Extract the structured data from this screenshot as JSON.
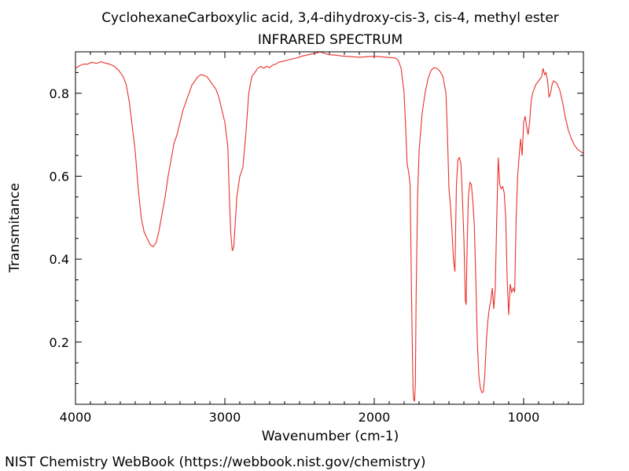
{
  "chart_data": {
    "type": "line",
    "title": "CyclohexaneCarboxylic acid, 3,4-dihydroxy-cis-3, cis-4, methyl ester",
    "subtitle": "INFRARED SPECTRUM",
    "xlabel": "Wavenumber (cm-1)",
    "ylabel": "Transmitance",
    "xlim": [
      4000,
      600
    ],
    "ylim": [
      0.05,
      0.9
    ],
    "x_reversed": true,
    "grid": false,
    "legend": "none",
    "x_ticks": [
      4000,
      3000,
      2000,
      1000
    ],
    "x_tick_labels": [
      "4000",
      "3000",
      "2000",
      "1000"
    ],
    "y_ticks": [
      0.2,
      0.4,
      0.6,
      0.8
    ],
    "y_tick_labels": [
      "0.2",
      "0.4",
      "0.6",
      "0.8"
    ],
    "line_color": "#e8312b",
    "series": [
      {
        "values_xy": [
          [
            4000,
            0.86
          ],
          [
            3980,
            0.865
          ],
          [
            3950,
            0.87
          ],
          [
            3920,
            0.87
          ],
          [
            3890,
            0.875
          ],
          [
            3860,
            0.872
          ],
          [
            3830,
            0.876
          ],
          [
            3800,
            0.873
          ],
          [
            3770,
            0.87
          ],
          [
            3740,
            0.865
          ],
          [
            3710,
            0.855
          ],
          [
            3680,
            0.84
          ],
          [
            3660,
            0.82
          ],
          [
            3640,
            0.78
          ],
          [
            3620,
            0.72
          ],
          [
            3600,
            0.66
          ],
          [
            3580,
            0.57
          ],
          [
            3560,
            0.5
          ],
          [
            3540,
            0.465
          ],
          [
            3520,
            0.45
          ],
          [
            3500,
            0.435
          ],
          [
            3480,
            0.43
          ],
          [
            3460,
            0.44
          ],
          [
            3440,
            0.47
          ],
          [
            3420,
            0.51
          ],
          [
            3400,
            0.55
          ],
          [
            3380,
            0.6
          ],
          [
            3360,
            0.64
          ],
          [
            3340,
            0.68
          ],
          [
            3320,
            0.7
          ],
          [
            3300,
            0.73
          ],
          [
            3280,
            0.76
          ],
          [
            3260,
            0.78
          ],
          [
            3240,
            0.8
          ],
          [
            3220,
            0.82
          ],
          [
            3200,
            0.83
          ],
          [
            3180,
            0.84
          ],
          [
            3160,
            0.845
          ],
          [
            3140,
            0.843
          ],
          [
            3120,
            0.84
          ],
          [
            3100,
            0.83
          ],
          [
            3080,
            0.82
          ],
          [
            3060,
            0.81
          ],
          [
            3040,
            0.79
          ],
          [
            3020,
            0.76
          ],
          [
            3000,
            0.73
          ],
          [
            2980,
            0.67
          ],
          [
            2970,
            0.55
          ],
          [
            2960,
            0.46
          ],
          [
            2950,
            0.42
          ],
          [
            2940,
            0.43
          ],
          [
            2930,
            0.49
          ],
          [
            2920,
            0.55
          ],
          [
            2900,
            0.6
          ],
          [
            2880,
            0.62
          ],
          [
            2860,
            0.7
          ],
          [
            2840,
            0.8
          ],
          [
            2820,
            0.84
          ],
          [
            2800,
            0.85
          ],
          [
            2780,
            0.86
          ],
          [
            2760,
            0.865
          ],
          [
            2740,
            0.86
          ],
          [
            2720,
            0.865
          ],
          [
            2700,
            0.862
          ],
          [
            2680,
            0.868
          ],
          [
            2660,
            0.87
          ],
          [
            2640,
            0.875
          ],
          [
            2600,
            0.878
          ],
          [
            2560,
            0.882
          ],
          [
            2520,
            0.885
          ],
          [
            2480,
            0.89
          ],
          [
            2440,
            0.893
          ],
          [
            2400,
            0.896
          ],
          [
            2360,
            0.9
          ],
          [
            2340,
            0.897
          ],
          [
            2300,
            0.893
          ],
          [
            2260,
            0.892
          ],
          [
            2220,
            0.89
          ],
          [
            2180,
            0.889
          ],
          [
            2140,
            0.888
          ],
          [
            2100,
            0.887
          ],
          [
            2060,
            0.888
          ],
          [
            2000,
            0.889
          ],
          [
            1960,
            0.888
          ],
          [
            1920,
            0.887
          ],
          [
            1880,
            0.886
          ],
          [
            1860,
            0.885
          ],
          [
            1840,
            0.88
          ],
          [
            1820,
            0.86
          ],
          [
            1800,
            0.8
          ],
          [
            1790,
            0.72
          ],
          [
            1780,
            0.63
          ],
          [
            1770,
            0.61
          ],
          [
            1760,
            0.58
          ],
          [
            1750,
            0.3
          ],
          [
            1740,
            0.08
          ],
          [
            1735,
            0.06
          ],
          [
            1730,
            0.058
          ],
          [
            1725,
            0.1
          ],
          [
            1720,
            0.3
          ],
          [
            1710,
            0.55
          ],
          [
            1700,
            0.66
          ],
          [
            1680,
            0.75
          ],
          [
            1660,
            0.8
          ],
          [
            1640,
            0.835
          ],
          [
            1620,
            0.855
          ],
          [
            1600,
            0.862
          ],
          [
            1580,
            0.86
          ],
          [
            1560,
            0.853
          ],
          [
            1540,
            0.84
          ],
          [
            1520,
            0.8
          ],
          [
            1510,
            0.7
          ],
          [
            1500,
            0.57
          ],
          [
            1490,
            0.53
          ],
          [
            1480,
            0.47
          ],
          [
            1470,
            0.4
          ],
          [
            1460,
            0.37
          ],
          [
            1450,
            0.58
          ],
          [
            1440,
            0.64
          ],
          [
            1430,
            0.645
          ],
          [
            1420,
            0.63
          ],
          [
            1410,
            0.55
          ],
          [
            1400,
            0.45
          ],
          [
            1390,
            0.3
          ],
          [
            1385,
            0.29
          ],
          [
            1380,
            0.4
          ],
          [
            1370,
            0.55
          ],
          [
            1360,
            0.585
          ],
          [
            1350,
            0.58
          ],
          [
            1340,
            0.54
          ],
          [
            1330,
            0.48
          ],
          [
            1320,
            0.35
          ],
          [
            1310,
            0.2
          ],
          [
            1300,
            0.12
          ],
          [
            1290,
            0.09
          ],
          [
            1280,
            0.078
          ],
          [
            1270,
            0.08
          ],
          [
            1260,
            0.12
          ],
          [
            1250,
            0.2
          ],
          [
            1240,
            0.25
          ],
          [
            1230,
            0.28
          ],
          [
            1220,
            0.3
          ],
          [
            1210,
            0.33
          ],
          [
            1200,
            0.28
          ],
          [
            1190,
            0.33
          ],
          [
            1180,
            0.5
          ],
          [
            1170,
            0.645
          ],
          [
            1160,
            0.58
          ],
          [
            1150,
            0.57
          ],
          [
            1140,
            0.575
          ],
          [
            1130,
            0.56
          ],
          [
            1120,
            0.5
          ],
          [
            1110,
            0.35
          ],
          [
            1100,
            0.265
          ],
          [
            1090,
            0.34
          ],
          [
            1080,
            0.32
          ],
          [
            1070,
            0.33
          ],
          [
            1060,
            0.32
          ],
          [
            1050,
            0.5
          ],
          [
            1040,
            0.6
          ],
          [
            1030,
            0.65
          ],
          [
            1020,
            0.69
          ],
          [
            1010,
            0.65
          ],
          [
            1000,
            0.73
          ],
          [
            990,
            0.745
          ],
          [
            980,
            0.72
          ],
          [
            970,
            0.7
          ],
          [
            960,
            0.73
          ],
          [
            950,
            0.78
          ],
          [
            940,
            0.8
          ],
          [
            920,
            0.82
          ],
          [
            900,
            0.83
          ],
          [
            880,
            0.84
          ],
          [
            870,
            0.86
          ],
          [
            860,
            0.845
          ],
          [
            850,
            0.85
          ],
          [
            840,
            0.83
          ],
          [
            830,
            0.79
          ],
          [
            820,
            0.8
          ],
          [
            810,
            0.82
          ],
          [
            800,
            0.83
          ],
          [
            780,
            0.825
          ],
          [
            760,
            0.81
          ],
          [
            740,
            0.78
          ],
          [
            720,
            0.74
          ],
          [
            700,
            0.71
          ],
          [
            680,
            0.69
          ],
          [
            660,
            0.675
          ],
          [
            640,
            0.665
          ],
          [
            620,
            0.66
          ],
          [
            600,
            0.655
          ]
        ]
      }
    ]
  },
  "footer": {
    "text": "NIST Chemistry WebBook (https://webbook.nist.gov/chemistry)"
  }
}
